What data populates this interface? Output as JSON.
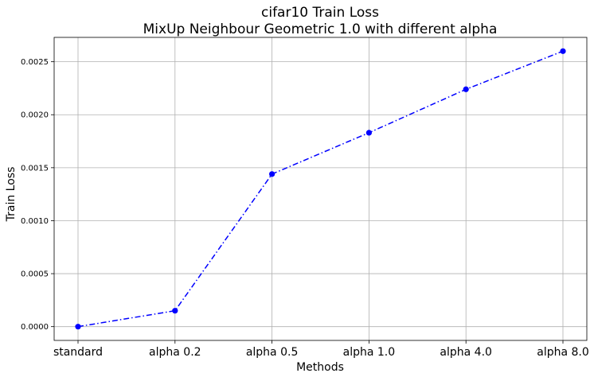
{
  "chart_data": {
    "type": "line",
    "title": "cifar10 Train Loss",
    "subtitle": "MixUp Neighbour Geometric 1.0 with different alpha",
    "xlabel": "Methods",
    "ylabel": "Train Loss",
    "categories": [
      "standard",
      "alpha 0.2",
      "alpha 0.5",
      "alpha 1.0",
      "alpha 4.0",
      "alpha 8.0"
    ],
    "series": [
      {
        "values": [
          0.0,
          0.00015,
          0.00144,
          0.00183,
          0.00224,
          0.0026
        ]
      }
    ],
    "ylim": [
      -0.00013,
      0.00273
    ],
    "yticks": [
      0.0,
      0.0005,
      0.001,
      0.0015,
      0.002,
      0.0025
    ],
    "ytick_labels": [
      "0.0000",
      "0.0005",
      "0.0010",
      "0.0015",
      "0.0020",
      "0.0025"
    ],
    "grid": true,
    "line_style": "dash-dot",
    "marker": "circle",
    "colors": {
      "series": "#0000ff",
      "grid": "#b0b0b0",
      "axes": "#000000"
    }
  }
}
